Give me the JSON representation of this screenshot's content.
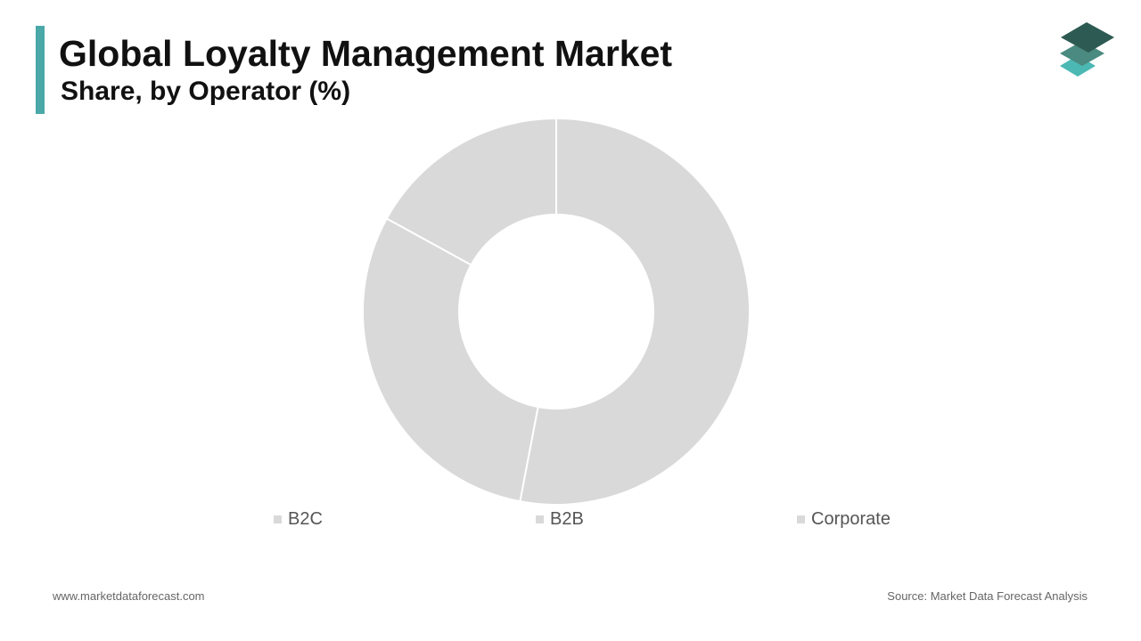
{
  "header": {
    "title": "Global Loyalty Management Market",
    "subtitle": "Share, by Operator (%)"
  },
  "footer": {
    "website": "www.marketdataforecast.com",
    "source": "Source: Market Data Forecast Analysis"
  },
  "colors": {
    "accent": "#4aa8a8",
    "segment_fill": "#d9d9d9",
    "segment_border": "#ffffff",
    "legend_swatch": "#d9d9d9",
    "logo_dark": "#2d5a52",
    "logo_mid": "#4a8a80",
    "logo_light": "#4cb8b4"
  },
  "logo": {
    "icon": "stacked-layers-logo-icon"
  },
  "chart_data": {
    "type": "pie",
    "variant": "donut",
    "categories": [
      "B2C",
      "B2B",
      "Corporate"
    ],
    "values": [
      53,
      30,
      17
    ],
    "legend_position": "bottom"
  }
}
